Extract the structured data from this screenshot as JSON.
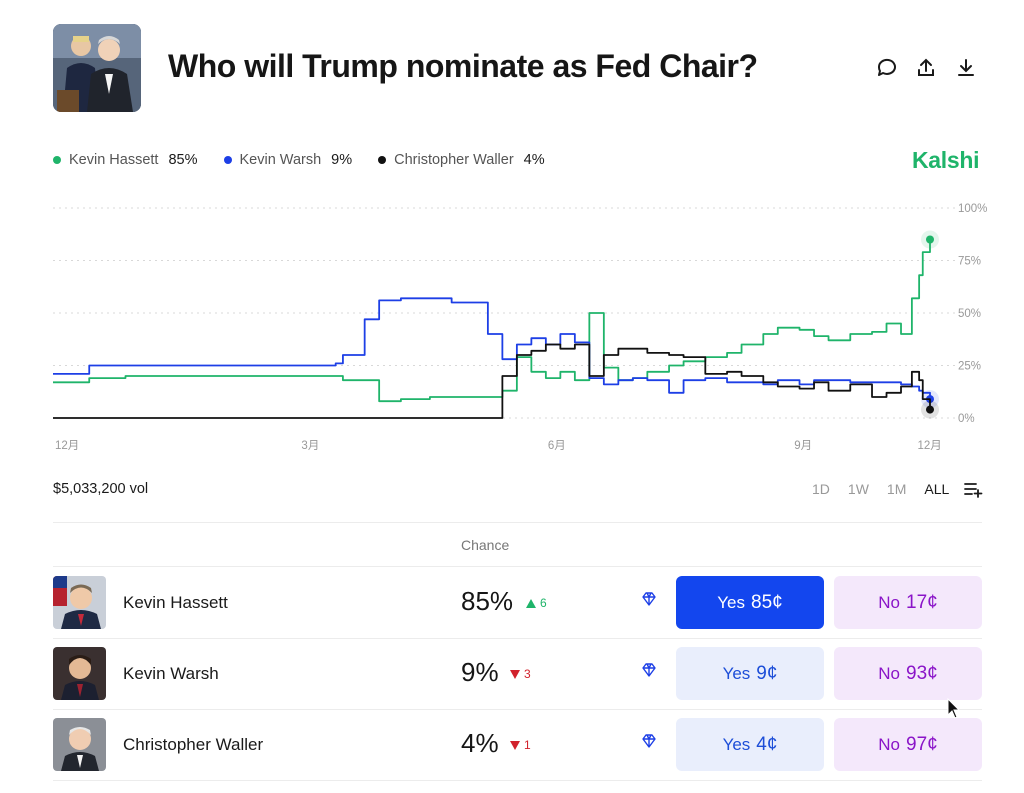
{
  "header": {
    "title": "Who will Trump nominate as Fed Chair?"
  },
  "legend": [
    {
      "name": "Kevin Hassett",
      "value": "85%",
      "color": "#1fb46a"
    },
    {
      "name": "Kevin Warsh",
      "value": "9%",
      "color": "#1d3fe6"
    },
    {
      "name": "Christopher Waller",
      "value": "4%",
      "color": "#111111"
    }
  ],
  "brand": "Kalshi",
  "chart_data": {
    "type": "line",
    "x_tick_labels": [
      "12月",
      "3月",
      "6月",
      "9月",
      "12月"
    ],
    "y_tick_labels": [
      "100%",
      "75%",
      "50%",
      "25%",
      "0%"
    ],
    "ylim": [
      0,
      100
    ],
    "grid": true,
    "x": [
      0,
      0.5,
      1,
      2,
      3,
      3.9,
      4,
      4.3,
      4.5,
      4.8,
      5,
      5.2,
      5.5,
      6,
      6.2,
      6.4,
      6.6,
      6.8,
      7,
      7.2,
      7.4,
      7.6,
      7.8,
      8,
      8.2,
      8.5,
      8.7,
      9,
      9.3,
      9.5,
      9.8,
      10,
      10.3,
      10.5,
      10.7,
      11,
      11.3,
      11.5,
      11.7,
      11.85,
      11.95,
      12,
      12.1
    ],
    "series": [
      {
        "name": "Kevin Hassett",
        "values": [
          17,
          19,
          20,
          20,
          20,
          20,
          18,
          18,
          8,
          9,
          9,
          10,
          10,
          10,
          13,
          29,
          22,
          19,
          22,
          18,
          50,
          24,
          18,
          19,
          22,
          25,
          27,
          29,
          31,
          35,
          40,
          43,
          42,
          39,
          37,
          40,
          41,
          45,
          40,
          57,
          68,
          79,
          85
        ]
      },
      {
        "name": "Kevin Warsh",
        "values": [
          21,
          25,
          25,
          25,
          25,
          26,
          30,
          47,
          56,
          57,
          57,
          57,
          55,
          40,
          28,
          35,
          38,
          35,
          40,
          36,
          19,
          16,
          18,
          19,
          18,
          12,
          18,
          19,
          17,
          17,
          16,
          18,
          16,
          18,
          18,
          17,
          17,
          17,
          16,
          15,
          13,
          12,
          9
        ]
      },
      {
        "name": "Christopher Waller",
        "values": [
          0,
          0,
          0,
          0,
          0,
          0,
          0,
          0,
          0,
          0,
          0,
          0,
          0,
          0,
          20,
          30,
          32,
          35,
          33,
          35,
          20,
          30,
          33,
          33,
          31,
          30,
          29,
          21,
          22,
          20,
          17,
          15,
          14,
          17,
          13,
          16,
          10,
          12,
          15,
          22,
          18,
          9,
          4
        ]
      }
    ]
  },
  "volume": "$5,033,200 vol",
  "ranges": [
    "1D",
    "1W",
    "1M",
    "ALL"
  ],
  "table": {
    "chance_header": "Chance",
    "rows": [
      {
        "name": "Kevin Hassett",
        "chance": "85%",
        "delta": "6",
        "direction": "up",
        "yes": "Yes",
        "yes_price": "85¢",
        "no": "No",
        "no_price": "17¢"
      },
      {
        "name": "Kevin Warsh",
        "chance": "9%",
        "delta": "3",
        "direction": "down",
        "yes": "Yes",
        "yes_price": "9¢",
        "no": "No",
        "no_price": "93¢"
      },
      {
        "name": "Christopher Waller",
        "chance": "4%",
        "delta": "1",
        "direction": "down",
        "yes": "Yes",
        "yes_price": "4¢",
        "no": "No",
        "no_price": "97¢"
      }
    ]
  }
}
